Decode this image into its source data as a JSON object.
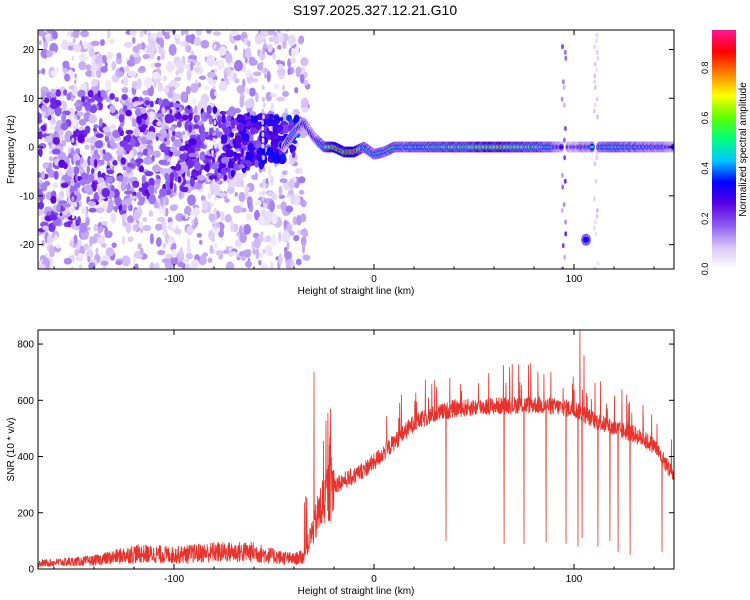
{
  "page": {
    "title": "S197.2025.327.12.21.G10"
  },
  "colors": {
    "snr_line": "#e8322c",
    "axis": "#000000",
    "background": "#ffffff",
    "colormap": [
      "#ffffff",
      "#d9c6f5",
      "#8c5cf0",
      "#5a00e0",
      "#0000ff",
      "#00c8ff",
      "#00ff80",
      "#60ff00",
      "#ffff00",
      "#ff8000",
      "#ff0000",
      "#ff1493"
    ]
  },
  "chart_data": [
    {
      "id": "spectrogram",
      "type": "heatmap",
      "title": "S197.2025.327.12.21.G10",
      "xlabel": "Height of straight line (km)",
      "ylabel": "Frequency (Hz)",
      "xlim": [
        -168,
        150
      ],
      "ylim": [
        -25,
        24
      ],
      "xticks": [
        -100,
        0,
        100
      ],
      "yticks": [
        -20,
        -10,
        0,
        10,
        20
      ],
      "colorbar": {
        "label": "Normalized spectral amplitude",
        "range": [
          0,
          0.95
        ],
        "ticks": [
          "0.0",
          "0.2",
          "0.4",
          "0.6",
          "0.8"
        ],
        "tick_values": [
          0,
          0.2,
          0.4,
          0.6,
          0.8
        ]
      },
      "ridge": {
        "description_points_x": [
          -45,
          -40,
          -35,
          -30,
          -25,
          -20,
          -15,
          -10,
          -5,
          0,
          5,
          10,
          20,
          40,
          60,
          80,
          90,
          95,
          100,
          110,
          120,
          140,
          150
        ],
        "description_points_freq": [
          0,
          3,
          5,
          2,
          0,
          0,
          -1,
          -1,
          0,
          -1.5,
          -1,
          0,
          0,
          0,
          0,
          0,
          0,
          0,
          0,
          0,
          0,
          0,
          0
        ],
        "description_points_amp": [
          0.3,
          0.4,
          0.35,
          0.3,
          0.5,
          0.9,
          0.8,
          0.9,
          0.5,
          0.45,
          0.5,
          0.5,
          0.5,
          0.6,
          0.7,
          0.6,
          0.45,
          0.3,
          0.3,
          0.4,
          0.5,
          0.4,
          0.35
        ]
      },
      "spur": {
        "x": 106,
        "freq": -19,
        "amp": 0.35
      },
      "gaps_x": [
        95,
        111
      ]
    },
    {
      "id": "snr",
      "type": "line",
      "xlabel": "Height of straight line (km)",
      "ylabel": "SNR (10 * v/v)",
      "xlim": [
        -168,
        150
      ],
      "ylim": [
        0,
        850
      ],
      "xticks": [
        -100,
        0,
        100
      ],
      "yticks": [
        0,
        200,
        400,
        600,
        800
      ],
      "envelope": {
        "x": [
          -168,
          -140,
          -120,
          -100,
          -80,
          -60,
          -50,
          -40,
          -35,
          -30,
          -25,
          -20,
          -10,
          0,
          10,
          20,
          30,
          40,
          60,
          80,
          100,
          110,
          120,
          130,
          140,
          150
        ],
        "y": [
          20,
          30,
          55,
          50,
          60,
          60,
          45,
          35,
          45,
          150,
          250,
          300,
          330,
          380,
          450,
          520,
          550,
          570,
          580,
          585,
          570,
          530,
          500,
          480,
          440,
          330
        ]
      },
      "dropouts": [
        {
          "x": 36,
          "y": 100
        },
        {
          "x": 65,
          "y": 90
        },
        {
          "x": 75,
          "y": 90
        },
        {
          "x": 86,
          "y": 95
        },
        {
          "x": 96,
          "y": 90
        },
        {
          "x": 102,
          "y": 80
        },
        {
          "x": 104,
          "y": 110
        },
        {
          "x": 112,
          "y": 80
        },
        {
          "x": 118,
          "y": 100
        },
        {
          "x": 122,
          "y": 60
        },
        {
          "x": 128,
          "y": 50
        },
        {
          "x": 144,
          "y": 60
        }
      ],
      "peaks": [
        {
          "x": -30,
          "y": 700
        },
        {
          "x": 103,
          "y": 850
        },
        {
          "x": 105,
          "y": 760
        }
      ]
    }
  ]
}
